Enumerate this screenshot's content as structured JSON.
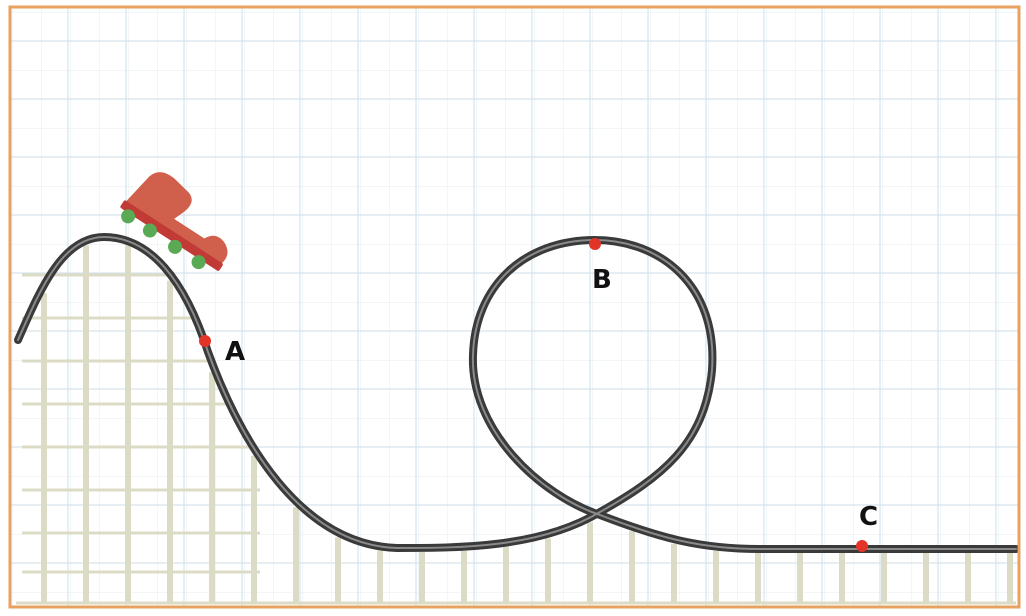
{
  "colors": {
    "frame": "#e8a15e",
    "grid": "#d6e4ec",
    "support": "#dcdcc6",
    "track": "#3a3a3a",
    "track_highlight": "#8a8a8a",
    "car_body": "#d0604c",
    "car_bar": "#c23a35",
    "wheel": "#5aa954",
    "point": "#e23528"
  },
  "points": [
    {
      "id": "A",
      "label": "A"
    },
    {
      "id": "B",
      "label": "B"
    },
    {
      "id": "C",
      "label": "C"
    }
  ]
}
